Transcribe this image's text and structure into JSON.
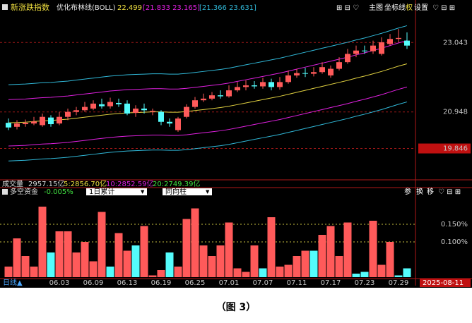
{
  "ui": {
    "indicator": "新涨跌指数",
    "boll_title": "优化布林线(BOLL)",
    "boll_mid": "22.499",
    "boll_band1": "[21.833 23.165]",
    "boll_band2": "[21.366 23.631]",
    "toolbar": [
      "主图",
      "坐标线",
      "权",
      "设置"
    ],
    "volume_label": "成交量",
    "volume_total": "2957.15亿",
    "volume_ma": [
      "5:2856.70亿",
      "10:2852.59亿",
      "20:2749.39亿"
    ],
    "panel_name": "多空资金",
    "panel_value": "-0.005%",
    "dropdowns": [
      "1日累计",
      "同向柱"
    ],
    "panel_tools": [
      "参",
      "换",
      "移"
    ],
    "period": "日线▲",
    "cursor_date": "2025-08-11",
    "caption": "（图 3）"
  },
  "chart_data": [
    {
      "type": "candlestick",
      "categories": [
        null,
        null,
        null,
        null,
        null,
        null,
        "06.03",
        null,
        null,
        null,
        "06.09",
        null,
        null,
        null,
        "06.13",
        null,
        null,
        null,
        "06.19",
        null,
        null,
        null,
        "06.25",
        null,
        null,
        null,
        "07.01",
        null,
        null,
        null,
        "07.07",
        null,
        null,
        null,
        "07.11",
        null,
        null,
        null,
        "07.17",
        null,
        null,
        null,
        "07.23",
        null,
        null,
        null,
        "07.29",
        null
      ],
      "open": [
        20.62,
        20.5,
        20.58,
        20.6,
        20.55,
        20.78,
        20.6,
        20.8,
        20.95,
        21.0,
        21.05,
        21.18,
        21.12,
        21.22,
        21.2,
        20.92,
        21.05,
        20.95,
        20.95,
        20.65,
        20.4,
        20.8,
        21.1,
        21.3,
        21.35,
        21.45,
        21.42,
        21.6,
        21.7,
        21.75,
        21.72,
        21.85,
        21.7,
        21.85,
        22.05,
        22.12,
        22.1,
        22.15,
        22.05,
        22.25,
        22.45,
        22.7,
        22.8,
        22.78,
        22.7,
        23.0,
        23.15,
        23.1
      ],
      "close": [
        20.48,
        20.6,
        20.62,
        20.66,
        20.8,
        20.58,
        20.8,
        20.95,
        21.0,
        21.1,
        21.2,
        21.12,
        21.25,
        21.18,
        20.9,
        21.05,
        21.0,
        20.98,
        20.65,
        20.6,
        20.75,
        21.1,
        21.3,
        21.35,
        21.45,
        21.42,
        21.6,
        21.7,
        21.75,
        21.72,
        21.85,
        21.7,
        21.85,
        22.05,
        22.12,
        22.1,
        22.15,
        22.3,
        22.25,
        22.45,
        22.7,
        22.8,
        22.78,
        22.95,
        23.05,
        23.15,
        23.18,
        22.95
      ],
      "high": [
        20.75,
        20.7,
        20.72,
        20.8,
        20.9,
        20.85,
        20.95,
        21.05,
        21.1,
        21.25,
        21.3,
        21.35,
        21.38,
        21.35,
        21.3,
        21.15,
        21.2,
        21.05,
        21.0,
        20.75,
        20.8,
        21.18,
        21.4,
        21.5,
        21.55,
        21.6,
        21.75,
        21.85,
        21.9,
        21.88,
        21.98,
        21.95,
        22.0,
        22.2,
        22.25,
        22.28,
        22.3,
        22.45,
        22.35,
        22.6,
        22.85,
        22.95,
        22.95,
        23.1,
        23.2,
        23.3,
        23.45,
        23.35
      ],
      "low": [
        20.4,
        20.42,
        20.5,
        20.55,
        20.5,
        20.5,
        20.55,
        20.7,
        20.85,
        20.95,
        21.0,
        21.05,
        21.05,
        21.1,
        20.85,
        20.8,
        20.9,
        20.85,
        20.55,
        20.5,
        20.35,
        20.75,
        21.05,
        21.25,
        21.3,
        21.35,
        21.38,
        21.55,
        21.6,
        21.65,
        21.65,
        21.6,
        21.62,
        21.8,
        21.98,
        22.0,
        22.02,
        22.1,
        21.98,
        22.2,
        22.4,
        22.6,
        22.7,
        22.7,
        22.65,
        22.95,
        23.05,
        22.85
      ],
      "up_color": "#ff5a5a",
      "down_color": "#54fcfc",
      "series": [
        {
          "color": "#e0d040",
          "values": [
            20.62,
            20.63,
            20.64,
            20.66,
            20.68,
            20.69,
            20.71,
            20.73,
            20.76,
            20.79,
            20.82,
            20.85,
            20.88,
            20.9,
            20.92,
            20.93,
            20.94,
            20.95,
            20.95,
            20.94,
            20.94,
            20.96,
            20.99,
            21.02,
            21.05,
            21.08,
            21.12,
            21.17,
            21.22,
            21.27,
            21.32,
            21.37,
            21.42,
            21.48,
            21.54,
            21.6,
            21.66,
            21.72,
            21.78,
            21.84,
            21.9,
            21.97,
            22.03,
            22.1,
            22.17,
            22.25,
            22.33,
            22.4
          ]
        },
        {
          "color": "#e020e0",
          "values": [
            21.32,
            21.33,
            21.34,
            21.36,
            21.38,
            21.39,
            21.41,
            21.43,
            21.46,
            21.49,
            21.52,
            21.55,
            21.58,
            21.6,
            21.62,
            21.63,
            21.64,
            21.65,
            21.65,
            21.64,
            21.64,
            21.66,
            21.69,
            21.72,
            21.75,
            21.78,
            21.82,
            21.87,
            21.92,
            21.97,
            22.02,
            22.07,
            22.12,
            22.18,
            22.24,
            22.3,
            22.36,
            22.42,
            22.48,
            22.54,
            22.6,
            22.67,
            22.73,
            22.8,
            22.87,
            22.95,
            23.03,
            23.1
          ]
        },
        {
          "color": "#e020e0",
          "values": [
            19.92,
            19.93,
            19.94,
            19.96,
            19.98,
            19.99,
            20.01,
            20.03,
            20.06,
            20.09,
            20.12,
            20.15,
            20.18,
            20.2,
            20.22,
            20.23,
            20.24,
            20.25,
            20.25,
            20.24,
            20.24,
            20.26,
            20.29,
            20.32,
            20.35,
            20.38,
            20.42,
            20.47,
            20.52,
            20.57,
            20.62,
            20.67,
            20.72,
            20.78,
            20.84,
            20.9,
            20.96,
            21.02,
            21.08,
            21.14,
            21.2,
            21.27,
            21.33,
            21.4,
            21.47,
            21.55,
            21.63,
            21.7
          ]
        },
        {
          "color": "#30b8d8",
          "values": [
            21.77,
            21.78,
            21.79,
            21.81,
            21.83,
            21.84,
            21.86,
            21.88,
            21.91,
            21.94,
            21.97,
            22.0,
            22.03,
            22.05,
            22.07,
            22.08,
            22.09,
            22.1,
            22.1,
            22.09,
            22.09,
            22.11,
            22.14,
            22.17,
            22.2,
            22.23,
            22.27,
            22.32,
            22.37,
            22.42,
            22.47,
            22.52,
            22.57,
            22.63,
            22.69,
            22.75,
            22.81,
            22.87,
            22.93,
            22.99,
            23.05,
            23.12,
            23.18,
            23.25,
            23.32,
            23.4,
            23.48,
            23.55
          ]
        },
        {
          "color": "#30b8d8",
          "values": [
            19.47,
            19.48,
            19.49,
            19.51,
            19.53,
            19.54,
            19.56,
            19.58,
            19.61,
            19.64,
            19.67,
            19.7,
            19.73,
            19.75,
            19.77,
            19.78,
            19.79,
            19.8,
            19.8,
            19.79,
            19.79,
            19.81,
            19.84,
            19.87,
            19.9,
            19.93,
            19.97,
            20.02,
            20.07,
            20.12,
            20.17,
            20.22,
            20.27,
            20.33,
            20.39,
            20.45,
            20.51,
            20.57,
            20.63,
            20.69,
            20.75,
            20.82,
            20.88,
            20.95,
            21.02,
            21.1,
            21.18,
            21.25
          ]
        }
      ],
      "ylim": [
        18.9,
        23.9
      ],
      "yticks": [
        23.043,
        20.948,
        19.846
      ]
    },
    {
      "type": "bar",
      "values": [
        0.03,
        0.11,
        0.06,
        0.03,
        0.2,
        0.07,
        0.13,
        0.13,
        0.07,
        0.1,
        0.045,
        0.185,
        0.03,
        0.125,
        0.075,
        0.09,
        0.145,
        0.005,
        0.02,
        0.07,
        0.03,
        0.165,
        0.195,
        0.09,
        0.06,
        0.09,
        0.155,
        0.025,
        0.015,
        0.09,
        0.025,
        0.17,
        0.03,
        0.035,
        0.06,
        0.075,
        0.075,
        0.12,
        0.145,
        0.06,
        0.155,
        0.01,
        0.015,
        0.16,
        0.035,
        0.1,
        0.005,
        0.025
      ],
      "colors": [
        "#ff5a5a",
        "#ff5a5a",
        "#ff5a5a",
        "#ff5a5a",
        "#ff5a5a",
        "#54fcfc",
        "#ff5a5a",
        "#ff5a5a",
        "#ff5a5a",
        "#ff5a5a",
        "#ff5a5a",
        "#ff5a5a",
        "#54fcfc",
        "#ff5a5a",
        "#ff5a5a",
        "#54fcfc",
        "#ff5a5a",
        "#ff5a5a",
        "#ff5a5a",
        "#54fcfc",
        "#ff5a5a",
        "#ff5a5a",
        "#ff5a5a",
        "#ff5a5a",
        "#ff5a5a",
        "#ff5a5a",
        "#ff5a5a",
        "#ff5a5a",
        "#ff5a5a",
        "#ff5a5a",
        "#54fcfc",
        "#ff5a5a",
        "#ff5a5a",
        "#ff5a5a",
        "#ff5a5a",
        "#ff5a5a",
        "#54fcfc",
        "#ff5a5a",
        "#ff5a5a",
        "#ff5a5a",
        "#ff5a5a",
        "#54fcfc",
        "#54fcfc",
        "#ff5a5a",
        "#ff5a5a",
        "#ff5a5a",
        "#54fcfc",
        "#54fcfc"
      ],
      "ylim": [
        0,
        0.23
      ],
      "yticks": [
        {
          "value": 0.15,
          "label": "0.150%"
        },
        {
          "value": 0.1,
          "label": "0.100%"
        }
      ]
    }
  ]
}
